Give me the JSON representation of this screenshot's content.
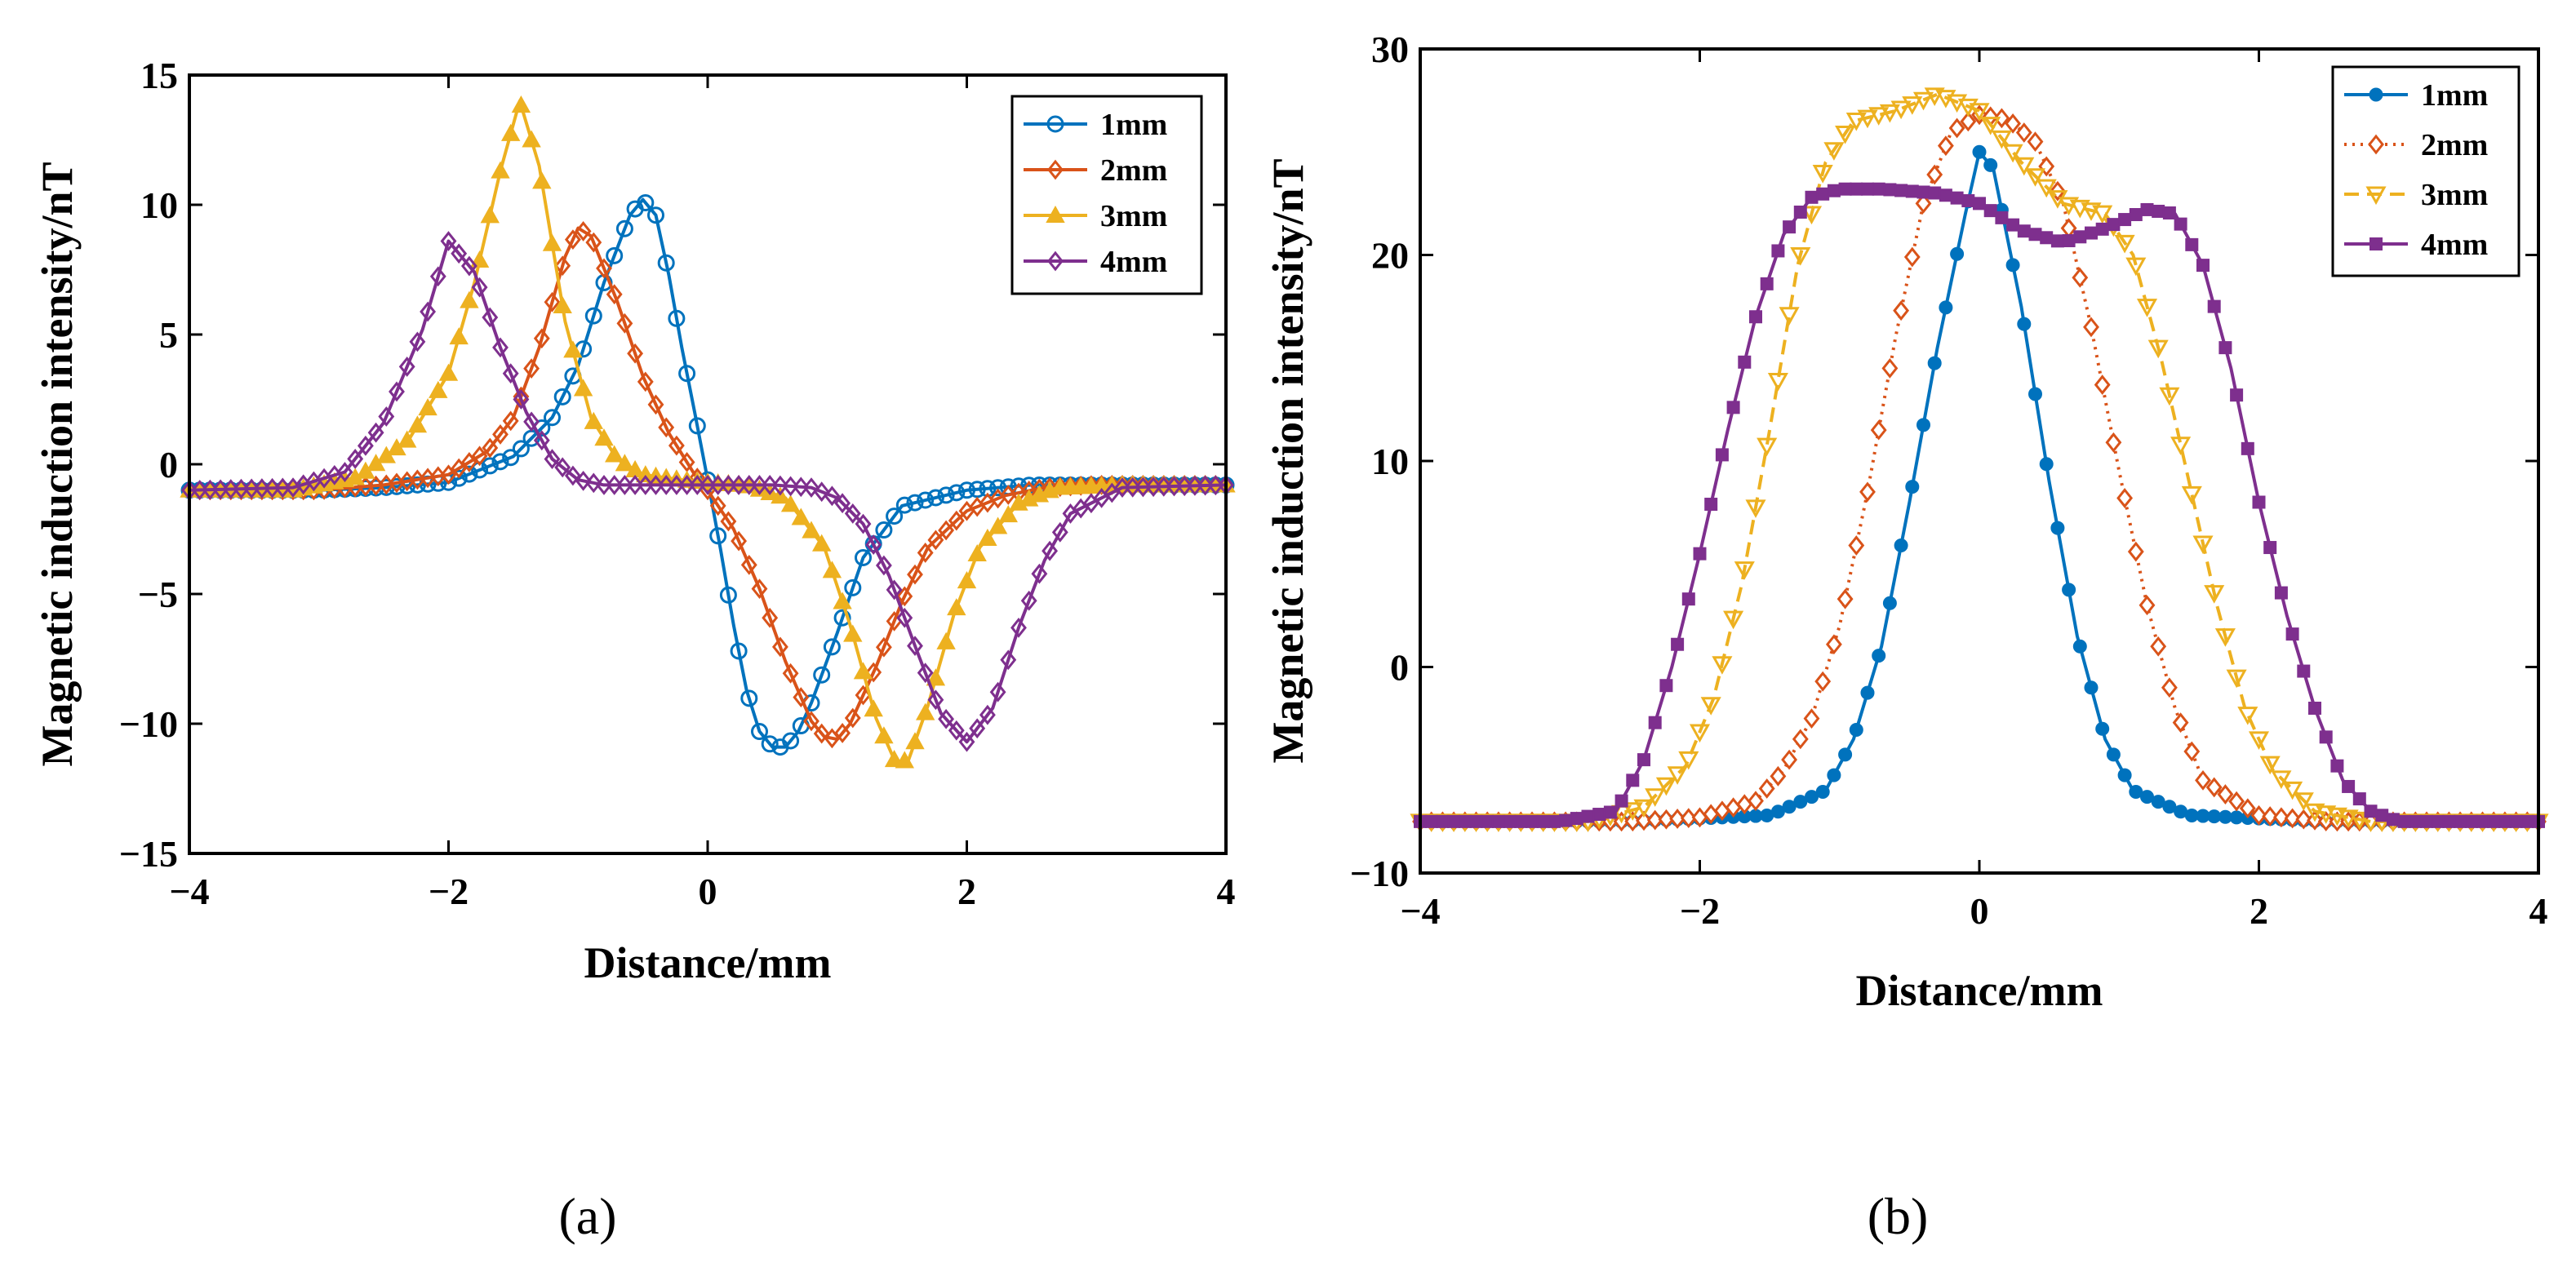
{
  "chart_data": [
    {
      "id": "a",
      "type": "line",
      "panel_label": "(a)",
      "xlabel": "Distance/mm",
      "ylabel": "Magnetic induction intensity/nT",
      "xlim": [
        -4,
        4
      ],
      "ylim": [
        -15,
        15
      ],
      "xticks": [
        -4,
        -2,
        0,
        2,
        4
      ],
      "yticks": [
        -15,
        -10,
        -5,
        0,
        5,
        10,
        15
      ],
      "xtick_labels": [
        "−4",
        "−2",
        "0",
        "2",
        "4"
      ],
      "ytick_labels": [
        "−15",
        "−10",
        "−5",
        "0",
        "5",
        "10",
        "15"
      ],
      "legend_position": "top-right",
      "series": [
        {
          "name": "1mm",
          "color": "#0072BD",
          "marker": "circle",
          "line": "solid",
          "x": [
            -4,
            -3,
            -2.5,
            -2,
            -1.5,
            -1.2,
            -1,
            -0.8,
            -0.6,
            -0.5,
            -0.4,
            -0.3,
            -0.2,
            -0.1,
            0,
            0.1,
            0.2,
            0.3,
            0.4,
            0.5,
            0.6,
            0.7,
            0.8,
            1,
            1.2,
            1.5,
            2,
            2.5,
            3,
            4
          ],
          "y": [
            -1,
            -1,
            -0.9,
            -0.7,
            0.3,
            1.8,
            3.8,
            7,
            9.6,
            10.2,
            9.6,
            7.3,
            4.5,
            2,
            -0.6,
            -3.3,
            -6.2,
            -8.7,
            -10.3,
            -10.9,
            -10.9,
            -10.3,
            -9.2,
            -6.5,
            -3.6,
            -1.6,
            -1,
            -0.8,
            -0.8,
            -0.8
          ]
        },
        {
          "name": "2mm",
          "color": "#D95319",
          "marker": "diamond",
          "line": "solid",
          "x": [
            -4,
            -3,
            -2.5,
            -2,
            -1.7,
            -1.5,
            -1.3,
            -1.1,
            -1,
            -0.9,
            -0.7,
            -0.5,
            -0.3,
            -0.1,
            0,
            0.2,
            0.4,
            0.6,
            0.8,
            0.9,
            1,
            1.1,
            1.3,
            1.5,
            1.7,
            2,
            2.3,
            2.6,
            3,
            4
          ],
          "y": [
            -1,
            -1,
            -0.8,
            -0.4,
            0.5,
            1.8,
            4.5,
            8,
            9.1,
            8.8,
            6.3,
            3.4,
            1.2,
            -0.4,
            -1,
            -2.5,
            -4.8,
            -7.6,
            -9.9,
            -10.5,
            -10.6,
            -10,
            -7.8,
            -5.3,
            -3.2,
            -1.8,
            -1.2,
            -0.9,
            -0.8,
            -0.8
          ]
        },
        {
          "name": "3mm",
          "color": "#EDB120",
          "marker": "triangle-up",
          "line": "solid",
          "x": [
            -4,
            -3.2,
            -2.7,
            -2.3,
            -2,
            -1.8,
            -1.6,
            -1.45,
            -1.3,
            -1.1,
            -0.9,
            -0.7,
            -0.5,
            -0.2,
            0,
            0.3,
            0.6,
            0.9,
            1.1,
            1.3,
            1.45,
            1.55,
            1.7,
            1.9,
            2.1,
            2.4,
            2.7,
            3.2,
            4
          ],
          "y": [
            -1,
            -1,
            -0.5,
            1,
            3.5,
            7,
            11.3,
            14,
            11.5,
            5.5,
            1.8,
            0.2,
            -0.4,
            -0.6,
            -0.7,
            -0.8,
            -1.3,
            -3.2,
            -6.2,
            -9.8,
            -11.5,
            -11.4,
            -9.3,
            -5.8,
            -3.2,
            -1.5,
            -0.9,
            -0.8,
            -0.8
          ]
        },
        {
          "name": "4mm",
          "color": "#7E2F8E",
          "marker": "diamond",
          "line": "solid",
          "x": [
            -4,
            -3.2,
            -2.8,
            -2.5,
            -2.2,
            -2,
            -1.8,
            -1.6,
            -1.4,
            -1.2,
            -1,
            -0.8,
            -0.5,
            0,
            0.5,
            0.8,
            1,
            1.2,
            1.4,
            1.6,
            1.8,
            2,
            2.2,
            2.4,
            2.6,
            2.8,
            3.2,
            4
          ],
          "y": [
            -1,
            -0.9,
            -0.3,
            1.6,
            5.2,
            8.6,
            7.4,
            4.5,
            2,
            0.2,
            -0.6,
            -0.8,
            -0.8,
            -0.8,
            -0.8,
            -0.9,
            -1.3,
            -2.3,
            -4.3,
            -7,
            -9.6,
            -10.7,
            -9.4,
            -6.3,
            -3.7,
            -1.9,
            -0.9,
            -0.8
          ]
        }
      ]
    },
    {
      "id": "b",
      "type": "line",
      "panel_label": "(b)",
      "xlabel": "Distance/mm",
      "ylabel": "Magnetic induction intensity/nT",
      "xlim": [
        -4,
        4
      ],
      "ylim": [
        -10,
        30
      ],
      "xticks": [
        -4,
        -2,
        0,
        2,
        4
      ],
      "yticks": [
        -10,
        0,
        10,
        20,
        30
      ],
      "xtick_labels": [
        "−4",
        "−2",
        "0",
        "2",
        "4"
      ],
      "ytick_labels": [
        "−10",
        "0",
        "10",
        "20",
        "30"
      ],
      "legend_position": "top-right",
      "series": [
        {
          "name": "1mm",
          "color": "#0072BD",
          "marker": "filled-circle",
          "line": "solid",
          "x": [
            -4,
            -2.5,
            -1.5,
            -1.1,
            -0.9,
            -0.7,
            -0.5,
            -0.3,
            -0.1,
            0,
            0.1,
            0.3,
            0.5,
            0.7,
            0.9,
            1.1,
            1.5,
            2.5,
            4
          ],
          "y": [
            -7.5,
            -7.5,
            -7.2,
            -6,
            -3.5,
            1,
            8,
            15.5,
            22,
            25,
            24.2,
            17.5,
            9,
            1.5,
            -3.5,
            -6,
            -7.2,
            -7.5,
            -7.5
          ]
        },
        {
          "name": "2mm",
          "color": "#D95319",
          "marker": "open-diamond",
          "line": "dotted",
          "x": [
            -4,
            -2.5,
            -2,
            -1.6,
            -1.4,
            -1.2,
            -1,
            -0.8,
            -0.6,
            -0.4,
            -0.2,
            0,
            0.2,
            0.4,
            0.6,
            0.8,
            1,
            1.2,
            1.4,
            1.6,
            2,
            2.5,
            4
          ],
          "y": [
            -7.5,
            -7.5,
            -7.3,
            -6.5,
            -5,
            -2.5,
            2,
            8.5,
            16,
            22.5,
            26,
            26.8,
            26.6,
            25.5,
            22.5,
            16.5,
            9.5,
            3,
            -2,
            -5.5,
            -7.2,
            -7.5,
            -7.5
          ]
        },
        {
          "name": "3mm",
          "color": "#EDB120",
          "marker": "open-triangle-down",
          "line": "dashed",
          "x": [
            -4,
            -2.8,
            -2.4,
            -2.1,
            -1.9,
            -1.7,
            -1.5,
            -1.3,
            -1.1,
            -0.9,
            -0.6,
            -0.3,
            0,
            0.3,
            0.6,
            0.9,
            1.1,
            1.3,
            1.5,
            1.7,
            1.9,
            2.1,
            2.4,
            2.8,
            4
          ],
          "y": [
            -7.5,
            -7.5,
            -6.8,
            -4.8,
            -1.5,
            4,
            11.5,
            19.5,
            24.5,
            26.5,
            27,
            27.8,
            27,
            24.5,
            22.5,
            22,
            20,
            15,
            9,
            3,
            -2,
            -5,
            -7,
            -7.5,
            -7.5
          ]
        },
        {
          "name": "4mm",
          "color": "#7E2F8E",
          "marker": "square",
          "line": "solid",
          "x": [
            -4,
            -3,
            -2.6,
            -2.4,
            -2.2,
            -2,
            -1.8,
            -1.6,
            -1.4,
            -1.2,
            -1,
            -0.7,
            -0.3,
            0,
            0.3,
            0.6,
            0.9,
            1.2,
            1.4,
            1.6,
            1.8,
            2,
            2.2,
            2.4,
            2.6,
            2.8,
            3,
            4
          ],
          "y": [
            -7.5,
            -7.5,
            -7,
            -4.5,
            0,
            5.5,
            11.5,
            17,
            21,
            22.8,
            23.2,
            23.2,
            23,
            22.5,
            21.2,
            20.6,
            21.3,
            22.2,
            22,
            19.5,
            14.5,
            8,
            2.5,
            -2,
            -5.5,
            -7,
            -7.5,
            -7.5
          ]
        }
      ]
    }
  ]
}
